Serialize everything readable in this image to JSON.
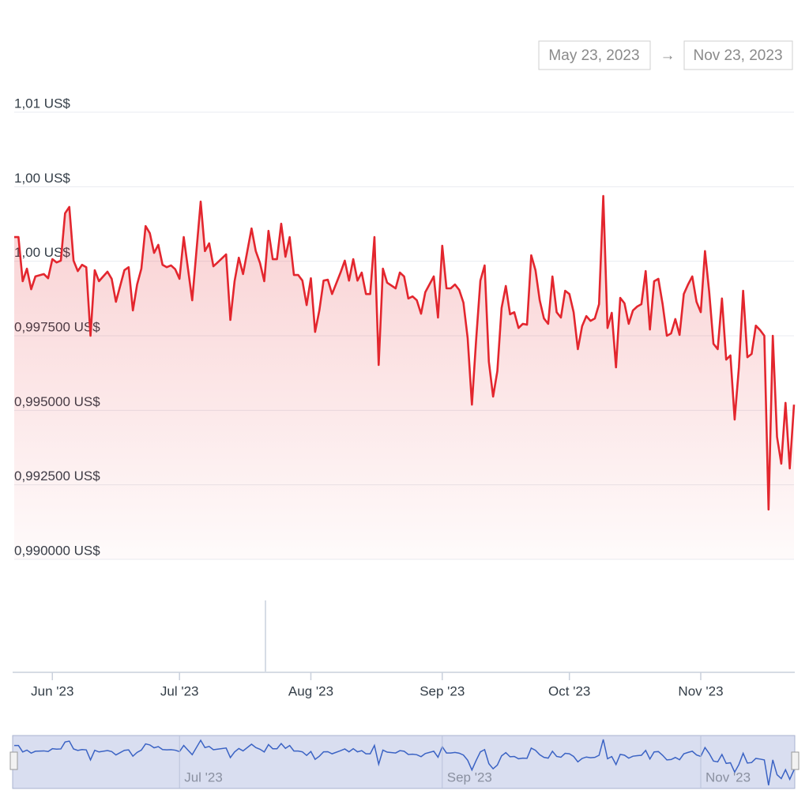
{
  "date_range": {
    "from": "May 23, 2023",
    "separator": "→",
    "to": "Nov 23, 2023"
  },
  "chart_data": {
    "type": "line",
    "x": [
      "2023-05-23",
      "2023-05-24",
      "2023-05-25",
      "2023-05-26",
      "2023-05-27",
      "2023-05-28",
      "2023-05-30",
      "2023-05-31",
      "2023-06-01",
      "2023-06-02",
      "2023-06-03",
      "2023-06-04",
      "2023-06-05",
      "2023-06-06",
      "2023-06-07",
      "2023-06-08",
      "2023-06-09",
      "2023-06-10",
      "2023-06-11",
      "2023-06-12",
      "2023-06-14",
      "2023-06-15",
      "2023-06-16",
      "2023-06-18",
      "2023-06-19",
      "2023-06-20",
      "2023-06-21",
      "2023-06-22",
      "2023-06-23",
      "2023-06-24",
      "2023-06-25",
      "2023-06-26",
      "2023-06-27",
      "2023-06-28",
      "2023-06-29",
      "2023-06-30",
      "2023-07-01",
      "2023-07-02",
      "2023-07-03",
      "2023-07-04",
      "2023-07-06",
      "2023-07-07",
      "2023-07-08",
      "2023-07-09",
      "2023-07-10",
      "2023-07-12",
      "2023-07-13",
      "2023-07-14",
      "2023-07-15",
      "2023-07-16",
      "2023-07-18",
      "2023-07-19",
      "2023-07-20",
      "2023-07-21",
      "2023-07-22",
      "2023-07-23",
      "2023-07-24",
      "2023-07-25",
      "2023-07-26",
      "2023-07-27",
      "2023-07-28",
      "2023-07-29",
      "2023-07-30",
      "2023-07-31",
      "2023-08-01",
      "2023-08-02",
      "2023-08-03",
      "2023-08-04",
      "2023-08-05",
      "2023-08-06",
      "2023-08-08",
      "2023-08-09",
      "2023-08-10",
      "2023-08-11",
      "2023-08-12",
      "2023-08-13",
      "2023-08-14",
      "2023-08-15",
      "2023-08-16",
      "2023-08-17",
      "2023-08-18",
      "2023-08-19",
      "2023-08-21",
      "2023-08-22",
      "2023-08-23",
      "2023-08-24",
      "2023-08-25",
      "2023-08-26",
      "2023-08-27",
      "2023-08-28",
      "2023-08-30",
      "2023-08-31",
      "2023-09-01",
      "2023-09-02",
      "2023-09-03",
      "2023-09-04",
      "2023-09-05",
      "2023-09-06",
      "2023-09-07",
      "2023-09-08",
      "2023-09-09",
      "2023-09-10",
      "2023-09-11",
      "2023-09-12",
      "2023-09-13",
      "2023-09-14",
      "2023-09-15",
      "2023-09-16",
      "2023-09-17",
      "2023-09-18",
      "2023-09-19",
      "2023-09-20",
      "2023-09-21",
      "2023-09-22",
      "2023-09-23",
      "2023-09-24",
      "2023-09-25",
      "2023-09-26",
      "2023-09-27",
      "2023-09-28",
      "2023-09-29",
      "2023-09-30",
      "2023-10-01",
      "2023-10-02",
      "2023-10-03",
      "2023-10-04",
      "2023-10-05",
      "2023-10-06",
      "2023-10-07",
      "2023-10-08",
      "2023-10-09",
      "2023-10-10",
      "2023-10-11",
      "2023-10-12",
      "2023-10-13",
      "2023-10-14",
      "2023-10-15",
      "2023-10-16",
      "2023-10-17",
      "2023-10-18",
      "2023-10-19",
      "2023-10-20",
      "2023-10-21",
      "2023-10-22",
      "2023-10-23",
      "2023-10-24",
      "2023-10-25",
      "2023-10-26",
      "2023-10-27",
      "2023-10-28",
      "2023-10-29",
      "2023-10-30",
      "2023-10-31",
      "2023-11-01",
      "2023-11-02",
      "2023-11-03",
      "2023-11-04",
      "2023-11-05",
      "2023-11-06",
      "2023-11-07",
      "2023-11-08",
      "2023-11-09",
      "2023-11-10",
      "2023-11-11",
      "2023-11-12",
      "2023-11-13",
      "2023-11-14",
      "2023-11-15",
      "2023-11-16",
      "2023-11-17",
      "2023-11-18",
      "2023-11-19",
      "2023-11-20",
      "2023-11-21",
      "2023-11-22",
      "2023-11-23"
    ],
    "series": [
      {
        "color": "#e3262e",
        "values": [
          1.00081,
          1.00081,
          0.99933,
          0.99975,
          0.99906,
          0.99949,
          0.99957,
          0.99943,
          1.00007,
          0.99996,
          1.00002,
          1.00161,
          1.00182,
          1.00002,
          0.99967,
          0.99988,
          0.9998,
          0.9975,
          0.9997,
          0.99933,
          0.99965,
          0.99941,
          0.99864,
          0.9997,
          0.9998,
          0.99835,
          0.99922,
          0.99975,
          1.00118,
          1.00094,
          1.00028,
          1.00055,
          0.99988,
          0.9998,
          0.99986,
          0.99973,
          0.99941,
          1.00081,
          0.99975,
          0.99869,
          1.002,
          1.00034,
          1.0006,
          0.99983,
          0.99996,
          1.00023,
          0.99803,
          0.99933,
          1.00012,
          0.99957,
          1.0011,
          1.00034,
          0.99994,
          0.99933,
          1.00102,
          1.00007,
          1.00007,
          1.00126,
          1.00015,
          1.00081,
          0.99954,
          0.99954,
          0.99935,
          0.99853,
          0.99943,
          0.99763,
          0.99835,
          0.99935,
          0.99938,
          0.9989,
          0.99962,
          1.00002,
          0.99935,
          1.00007,
          0.99935,
          0.99962,
          0.9989,
          0.9989,
          1.00081,
          0.99652,
          0.99975,
          0.99928,
          0.99909,
          0.99962,
          0.99949,
          0.99875,
          0.99882,
          0.99869,
          0.99824,
          0.99896,
          0.99949,
          0.99811,
          1.00052,
          0.99909,
          0.99909,
          0.99922,
          0.99904,
          0.99861,
          0.99742,
          0.99519,
          0.99737,
          0.99935,
          0.99986,
          0.99663,
          0.99546,
          0.99631,
          0.99843,
          0.99917,
          0.99822,
          0.99829,
          0.99776,
          0.9979,
          0.99787,
          1.0002,
          0.9997,
          0.99869,
          0.99808,
          0.9979,
          0.99949,
          0.99829,
          0.99811,
          0.99901,
          0.9989,
          0.99829,
          0.99705,
          0.99782,
          0.99816,
          0.998,
          0.99808,
          0.99856,
          1.00219,
          0.99776,
          0.99827,
          0.99644,
          0.99877,
          0.99859,
          0.9979,
          0.99835,
          0.99848,
          0.99856,
          0.99967,
          0.99771,
          0.99933,
          0.99941,
          0.99856,
          0.9975,
          0.99758,
          0.99806,
          0.99753,
          0.9989,
          0.99922,
          0.99949,
          0.99864,
          0.99829,
          1.00034,
          0.99896,
          0.99723,
          0.99705,
          0.99875,
          0.9967,
          0.99684,
          0.99469,
          0.99644,
          0.99901,
          0.99678,
          0.99689,
          0.99784,
          0.99769,
          0.9975,
          0.99167,
          0.9975,
          0.99411,
          0.99321,
          0.99525,
          0.99305,
          0.99519
        ]
      }
    ],
    "xlim": [
      "2023-05-23",
      "2023-11-23"
    ],
    "xticks": [
      {
        "value": "2023-06-01",
        "label": "Jun '23"
      },
      {
        "value": "2023-07-01",
        "label": "Jul '23"
      },
      {
        "value": "2023-08-01",
        "label": "Aug '23"
      },
      {
        "value": "2023-09-01",
        "label": "Sep '23"
      },
      {
        "value": "2023-10-01",
        "label": "Oct '23"
      },
      {
        "value": "2023-11-01",
        "label": "Nov '23"
      }
    ],
    "ylim": [
      0.99,
      1.005
    ],
    "yticks": [
      {
        "value": 0.99,
        "label": "0,990000 US$"
      },
      {
        "value": 0.9925,
        "label": "0,992500 US$"
      },
      {
        "value": 0.995,
        "label": "0,995000 US$"
      },
      {
        "value": 0.9975,
        "label": "0,997500 US$"
      },
      {
        "value": 1.0,
        "label": "1,00 US$"
      },
      {
        "value": 1.0025,
        "label": "1,00 US$"
      },
      {
        "value": 1.005,
        "label": "1,01 US$"
      }
    ],
    "grid": true,
    "navigator": {
      "color": "#3b63c4",
      "ticks": [
        {
          "value": "2023-07-01",
          "label": "Jul '23"
        },
        {
          "value": "2023-09-01",
          "label": "Sep '23"
        },
        {
          "value": "2023-11-01",
          "label": "Nov '23"
        }
      ]
    }
  }
}
